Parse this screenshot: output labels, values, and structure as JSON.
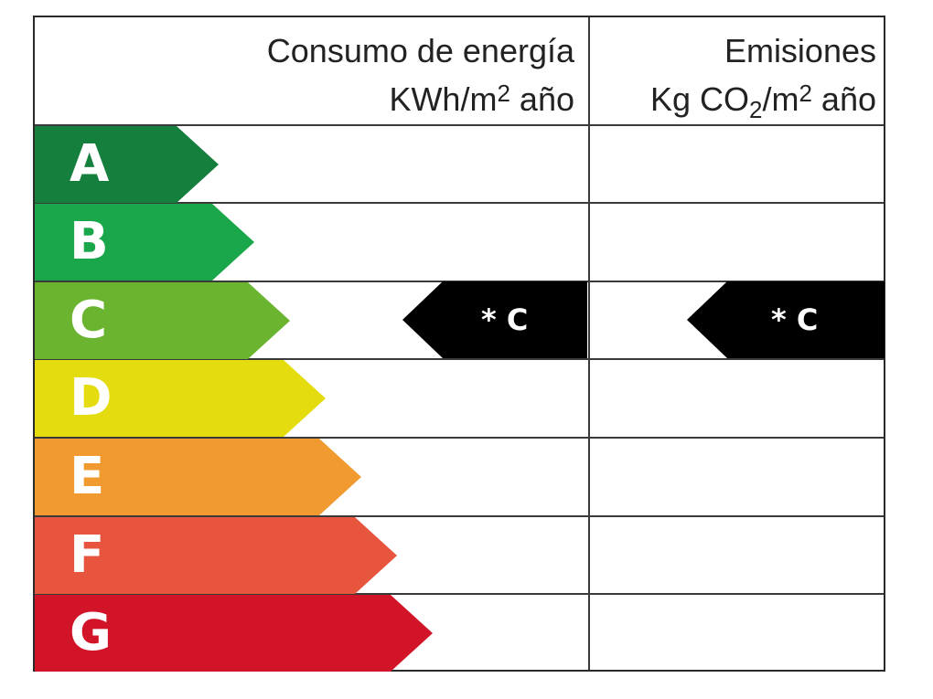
{
  "header": {
    "consumo_line1": "Consumo de energía",
    "consumo_line2_pre": "KWh/m",
    "consumo_line2_sup": "2",
    "consumo_line2_post": " año",
    "emisiones_line1": "Emisiones",
    "emisiones_line2_pre": "Kg CO",
    "emisiones_line2_sub": "2",
    "emisiones_line2_mid": "/m",
    "emisiones_line2_sup": "2",
    "emisiones_line2_post": " año"
  },
  "ratings": [
    {
      "letter": "A",
      "color": "#157f3d"
    },
    {
      "letter": "B",
      "color": "#1aa64a"
    },
    {
      "letter": "C",
      "color": "#6ab42f"
    },
    {
      "letter": "D",
      "color": "#e4dc0f"
    },
    {
      "letter": "E",
      "color": "#f09a2f"
    },
    {
      "letter": "F",
      "color": "#e8553f"
    },
    {
      "letter": "G",
      "color": "#d21428"
    }
  ],
  "indicators": {
    "consumo": {
      "label": "* C",
      "rating": "C",
      "color": "#000000"
    },
    "emisiones": {
      "label": "* C",
      "rating": "C",
      "color": "#000000"
    }
  }
}
